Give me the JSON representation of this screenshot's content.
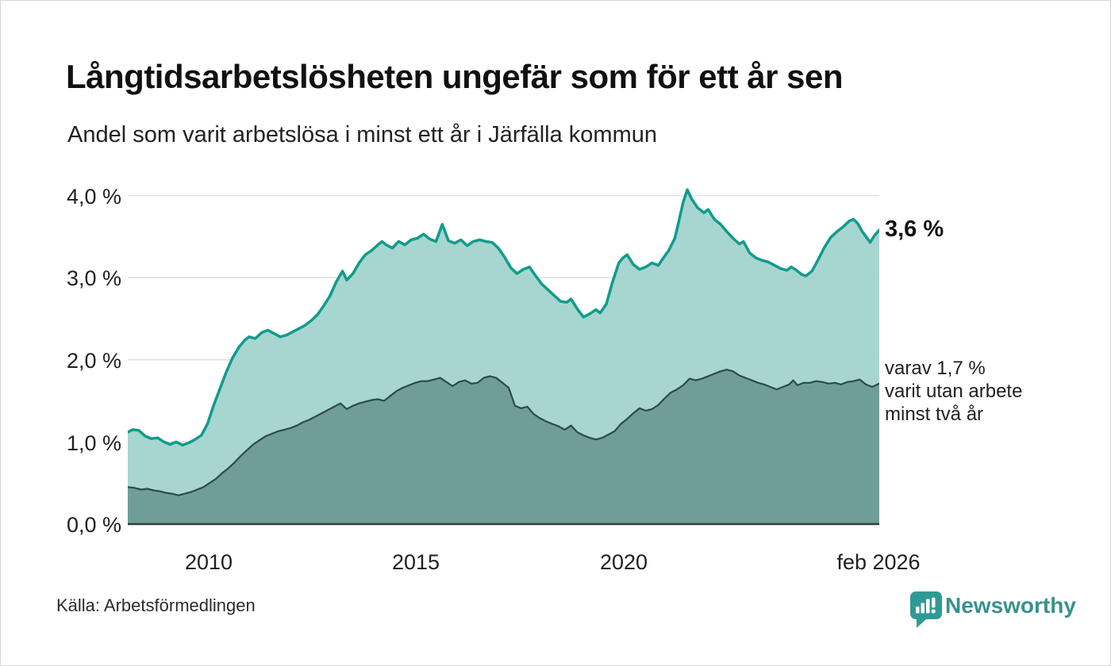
{
  "chart_data": {
    "type": "area",
    "title": "Långtidsarbetslösheten ungefär som för ett år sen",
    "subtitle": "Andel som varit arbetslösa i minst ett år i Järfälla kommun",
    "source": "Källa: Arbetsförmedlingen",
    "brand": "Newsworthy",
    "x_range": [
      2008.08,
      2026.17
    ],
    "y_max": 4.17,
    "grid_on": true,
    "colors": {
      "grid": "#e0e0e0",
      "baseline": "#333f3d",
      "total_line": "#119b8d",
      "total_fill": "#9fd3cb",
      "two_year_line": "#2e4b46",
      "two_year_fill": "#6d9c96",
      "brand_teal": "#2f9a94"
    },
    "y_ticks": [
      {
        "v": 0,
        "label": "0,0 %"
      },
      {
        "v": 1,
        "label": "1,0 %"
      },
      {
        "v": 2,
        "label": "2,0 %"
      },
      {
        "v": 3,
        "label": "3,0 %"
      },
      {
        "v": 4,
        "label": "4,0 %"
      }
    ],
    "x_ticks": [
      {
        "x": 2010,
        "label": "2010"
      },
      {
        "x": 2015,
        "label": "2015"
      },
      {
        "x": 2020,
        "label": "2020"
      },
      {
        "x": 2026.17,
        "label": "feb 2026"
      }
    ],
    "annotations": {
      "latest_total": "3,6 %",
      "secondary_line1": "varav 1,7 %",
      "secondary_line2": "varit utan arbete",
      "secondary_line3": "minst två år"
    },
    "series": [
      {
        "name": "minst ett år",
        "line_color": "#119b8d",
        "fill_color": "#9fd3cb",
        "line_width": 3.5,
        "points": [
          [
            2008.08,
            1.12
          ],
          [
            2008.2,
            1.15
          ],
          [
            2008.35,
            1.14
          ],
          [
            2008.5,
            1.07
          ],
          [
            2008.65,
            1.04
          ],
          [
            2008.8,
            1.05
          ],
          [
            2008.95,
            1.0
          ],
          [
            2009.1,
            0.97
          ],
          [
            2009.25,
            1.0
          ],
          [
            2009.4,
            0.96
          ],
          [
            2009.55,
            0.99
          ],
          [
            2009.7,
            1.03
          ],
          [
            2009.85,
            1.08
          ],
          [
            2010.0,
            1.22
          ],
          [
            2010.15,
            1.45
          ],
          [
            2010.3,
            1.65
          ],
          [
            2010.45,
            1.85
          ],
          [
            2010.6,
            2.02
          ],
          [
            2010.75,
            2.15
          ],
          [
            2010.9,
            2.24
          ],
          [
            2011.0,
            2.28
          ],
          [
            2011.15,
            2.26
          ],
          [
            2011.3,
            2.33
          ],
          [
            2011.45,
            2.36
          ],
          [
            2011.6,
            2.32
          ],
          [
            2011.75,
            2.28
          ],
          [
            2011.9,
            2.3
          ],
          [
            2012.05,
            2.34
          ],
          [
            2012.2,
            2.38
          ],
          [
            2012.35,
            2.42
          ],
          [
            2012.5,
            2.48
          ],
          [
            2012.65,
            2.55
          ],
          [
            2012.8,
            2.66
          ],
          [
            2012.95,
            2.78
          ],
          [
            2013.1,
            2.95
          ],
          [
            2013.25,
            3.08
          ],
          [
            2013.35,
            2.97
          ],
          [
            2013.5,
            3.05
          ],
          [
            2013.65,
            3.18
          ],
          [
            2013.8,
            3.28
          ],
          [
            2013.95,
            3.33
          ],
          [
            2014.1,
            3.4
          ],
          [
            2014.2,
            3.44
          ],
          [
            2014.3,
            3.4
          ],
          [
            2014.45,
            3.36
          ],
          [
            2014.6,
            3.44
          ],
          [
            2014.75,
            3.4
          ],
          [
            2014.9,
            3.46
          ],
          [
            2015.05,
            3.48
          ],
          [
            2015.2,
            3.53
          ],
          [
            2015.35,
            3.47
          ],
          [
            2015.5,
            3.44
          ],
          [
            2015.65,
            3.65
          ],
          [
            2015.8,
            3.45
          ],
          [
            2015.95,
            3.42
          ],
          [
            2016.1,
            3.46
          ],
          [
            2016.25,
            3.39
          ],
          [
            2016.4,
            3.44
          ],
          [
            2016.55,
            3.46
          ],
          [
            2016.7,
            3.44
          ],
          [
            2016.85,
            3.43
          ],
          [
            2017.0,
            3.36
          ],
          [
            2017.15,
            3.25
          ],
          [
            2017.3,
            3.12
          ],
          [
            2017.45,
            3.05
          ],
          [
            2017.6,
            3.1
          ],
          [
            2017.75,
            3.13
          ],
          [
            2017.9,
            3.02
          ],
          [
            2018.05,
            2.92
          ],
          [
            2018.2,
            2.85
          ],
          [
            2018.35,
            2.78
          ],
          [
            2018.5,
            2.71
          ],
          [
            2018.65,
            2.7
          ],
          [
            2018.75,
            2.74
          ],
          [
            2018.9,
            2.62
          ],
          [
            2019.05,
            2.52
          ],
          [
            2019.2,
            2.56
          ],
          [
            2019.35,
            2.61
          ],
          [
            2019.45,
            2.57
          ],
          [
            2019.6,
            2.68
          ],
          [
            2019.75,
            2.95
          ],
          [
            2019.9,
            3.18
          ],
          [
            2020.0,
            3.24
          ],
          [
            2020.1,
            3.28
          ],
          [
            2020.25,
            3.16
          ],
          [
            2020.4,
            3.1
          ],
          [
            2020.55,
            3.13
          ],
          [
            2020.7,
            3.18
          ],
          [
            2020.85,
            3.15
          ],
          [
            2021.0,
            3.26
          ],
          [
            2021.1,
            3.33
          ],
          [
            2021.25,
            3.48
          ],
          [
            2021.35,
            3.7
          ],
          [
            2021.45,
            3.92
          ],
          [
            2021.55,
            4.07
          ],
          [
            2021.65,
            3.96
          ],
          [
            2021.8,
            3.85
          ],
          [
            2021.95,
            3.79
          ],
          [
            2022.05,
            3.83
          ],
          [
            2022.2,
            3.71
          ],
          [
            2022.35,
            3.65
          ],
          [
            2022.5,
            3.56
          ],
          [
            2022.65,
            3.48
          ],
          [
            2022.8,
            3.41
          ],
          [
            2022.9,
            3.44
          ],
          [
            2023.05,
            3.3
          ],
          [
            2023.2,
            3.24
          ],
          [
            2023.35,
            3.21
          ],
          [
            2023.5,
            3.19
          ],
          [
            2023.65,
            3.15
          ],
          [
            2023.8,
            3.11
          ],
          [
            2023.95,
            3.09
          ],
          [
            2024.05,
            3.13
          ],
          [
            2024.15,
            3.1
          ],
          [
            2024.3,
            3.04
          ],
          [
            2024.4,
            3.02
          ],
          [
            2024.55,
            3.08
          ],
          [
            2024.7,
            3.22
          ],
          [
            2024.85,
            3.37
          ],
          [
            2025.0,
            3.49
          ],
          [
            2025.15,
            3.56
          ],
          [
            2025.3,
            3.62
          ],
          [
            2025.45,
            3.69
          ],
          [
            2025.55,
            3.71
          ],
          [
            2025.65,
            3.66
          ],
          [
            2025.75,
            3.57
          ],
          [
            2025.85,
            3.5
          ],
          [
            2025.95,
            3.43
          ],
          [
            2026.05,
            3.51
          ],
          [
            2026.17,
            3.58
          ]
        ]
      },
      {
        "name": "minst två år",
        "line_color": "#2e4b46",
        "fill_color": "#6d9c96",
        "line_width": 2.2,
        "points": [
          [
            2008.08,
            0.45
          ],
          [
            2008.25,
            0.44
          ],
          [
            2008.4,
            0.42
          ],
          [
            2008.55,
            0.43
          ],
          [
            2008.7,
            0.41
          ],
          [
            2008.85,
            0.4
          ],
          [
            2009.0,
            0.38
          ],
          [
            2009.15,
            0.37
          ],
          [
            2009.3,
            0.35
          ],
          [
            2009.45,
            0.37
          ],
          [
            2009.6,
            0.39
          ],
          [
            2009.75,
            0.42
          ],
          [
            2009.9,
            0.45
          ],
          [
            2010.05,
            0.5
          ],
          [
            2010.2,
            0.55
          ],
          [
            2010.35,
            0.62
          ],
          [
            2010.5,
            0.68
          ],
          [
            2010.65,
            0.75
          ],
          [
            2010.8,
            0.83
          ],
          [
            2010.95,
            0.9
          ],
          [
            2011.1,
            0.97
          ],
          [
            2011.25,
            1.02
          ],
          [
            2011.4,
            1.07
          ],
          [
            2011.55,
            1.1
          ],
          [
            2011.7,
            1.13
          ],
          [
            2011.85,
            1.15
          ],
          [
            2012.0,
            1.17
          ],
          [
            2012.15,
            1.2
          ],
          [
            2012.3,
            1.24
          ],
          [
            2012.45,
            1.27
          ],
          [
            2012.6,
            1.31
          ],
          [
            2012.75,
            1.35
          ],
          [
            2012.9,
            1.39
          ],
          [
            2013.05,
            1.43
          ],
          [
            2013.2,
            1.47
          ],
          [
            2013.35,
            1.4
          ],
          [
            2013.5,
            1.44
          ],
          [
            2013.65,
            1.47
          ],
          [
            2013.8,
            1.49
          ],
          [
            2013.95,
            1.51
          ],
          [
            2014.1,
            1.52
          ],
          [
            2014.25,
            1.5
          ],
          [
            2014.4,
            1.56
          ],
          [
            2014.55,
            1.62
          ],
          [
            2014.7,
            1.66
          ],
          [
            2014.85,
            1.69
          ],
          [
            2015.0,
            1.72
          ],
          [
            2015.15,
            1.74
          ],
          [
            2015.3,
            1.74
          ],
          [
            2015.45,
            1.76
          ],
          [
            2015.6,
            1.78
          ],
          [
            2015.75,
            1.73
          ],
          [
            2015.9,
            1.68
          ],
          [
            2016.05,
            1.73
          ],
          [
            2016.2,
            1.75
          ],
          [
            2016.35,
            1.71
          ],
          [
            2016.5,
            1.72
          ],
          [
            2016.65,
            1.78
          ],
          [
            2016.8,
            1.8
          ],
          [
            2016.95,
            1.78
          ],
          [
            2017.1,
            1.72
          ],
          [
            2017.25,
            1.66
          ],
          [
            2017.4,
            1.44
          ],
          [
            2017.55,
            1.41
          ],
          [
            2017.7,
            1.43
          ],
          [
            2017.85,
            1.34
          ],
          [
            2018.0,
            1.29
          ],
          [
            2018.15,
            1.25
          ],
          [
            2018.3,
            1.22
          ],
          [
            2018.45,
            1.19
          ],
          [
            2018.6,
            1.15
          ],
          [
            2018.75,
            1.2
          ],
          [
            2018.9,
            1.12
          ],
          [
            2019.05,
            1.08
          ],
          [
            2019.2,
            1.05
          ],
          [
            2019.35,
            1.03
          ],
          [
            2019.5,
            1.05
          ],
          [
            2019.65,
            1.09
          ],
          [
            2019.8,
            1.13
          ],
          [
            2019.95,
            1.22
          ],
          [
            2020.1,
            1.28
          ],
          [
            2020.25,
            1.35
          ],
          [
            2020.4,
            1.41
          ],
          [
            2020.55,
            1.38
          ],
          [
            2020.7,
            1.4
          ],
          [
            2020.85,
            1.45
          ],
          [
            2021.0,
            1.53
          ],
          [
            2021.15,
            1.6
          ],
          [
            2021.3,
            1.64
          ],
          [
            2021.45,
            1.69
          ],
          [
            2021.6,
            1.77
          ],
          [
            2021.75,
            1.75
          ],
          [
            2021.9,
            1.77
          ],
          [
            2022.05,
            1.8
          ],
          [
            2022.2,
            1.83
          ],
          [
            2022.35,
            1.86
          ],
          [
            2022.5,
            1.88
          ],
          [
            2022.65,
            1.86
          ],
          [
            2022.8,
            1.81
          ],
          [
            2022.95,
            1.78
          ],
          [
            2023.1,
            1.75
          ],
          [
            2023.25,
            1.72
          ],
          [
            2023.4,
            1.7
          ],
          [
            2023.55,
            1.67
          ],
          [
            2023.7,
            1.64
          ],
          [
            2023.85,
            1.67
          ],
          [
            2024.0,
            1.7
          ],
          [
            2024.1,
            1.75
          ],
          [
            2024.2,
            1.69
          ],
          [
            2024.35,
            1.72
          ],
          [
            2024.5,
            1.72
          ],
          [
            2024.65,
            1.74
          ],
          [
            2024.8,
            1.73
          ],
          [
            2024.95,
            1.71
          ],
          [
            2025.1,
            1.72
          ],
          [
            2025.25,
            1.7
          ],
          [
            2025.4,
            1.73
          ],
          [
            2025.55,
            1.74
          ],
          [
            2025.7,
            1.76
          ],
          [
            2025.85,
            1.7
          ],
          [
            2026.0,
            1.67
          ],
          [
            2026.17,
            1.71
          ]
        ]
      }
    ]
  }
}
